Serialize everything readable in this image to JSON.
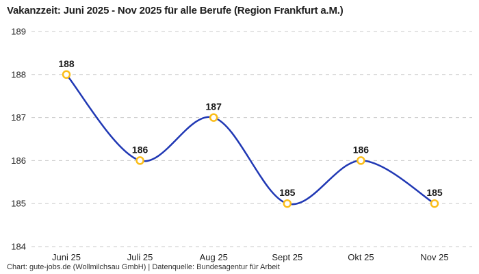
{
  "chart_data": {
    "type": "line",
    "title": "Vakanzzeit: Juni 2025 - Nov 2025 für alle Berufe (Region Frankfurt a.M.)",
    "footer": "Chart: gute-jobs.de (Wollmilchsau GmbH) | Datenquelle: Bundesagentur für Arbeit",
    "categories": [
      "Juni 25",
      "Juli 25",
      "Aug 25",
      "Sept 25",
      "Okt 25",
      "Nov 25"
    ],
    "values": [
      188,
      186,
      187,
      185,
      186,
      185
    ],
    "ylim": [
      184,
      189
    ],
    "yticks": [
      189,
      188,
      187,
      186,
      185,
      184
    ],
    "xlabel": "",
    "ylabel": "",
    "grid": "horizontal-dashed",
    "legend": "none",
    "colors": {
      "line": "#2038b4",
      "marker_stroke": "#fbbd18",
      "marker_fill": "#ffffff",
      "gridline": "#c9c9c9",
      "tick_text": "#222222",
      "value_label": "#1a1a1a",
      "title_text": "#1f1f1f",
      "footer_text": "#333333"
    }
  }
}
